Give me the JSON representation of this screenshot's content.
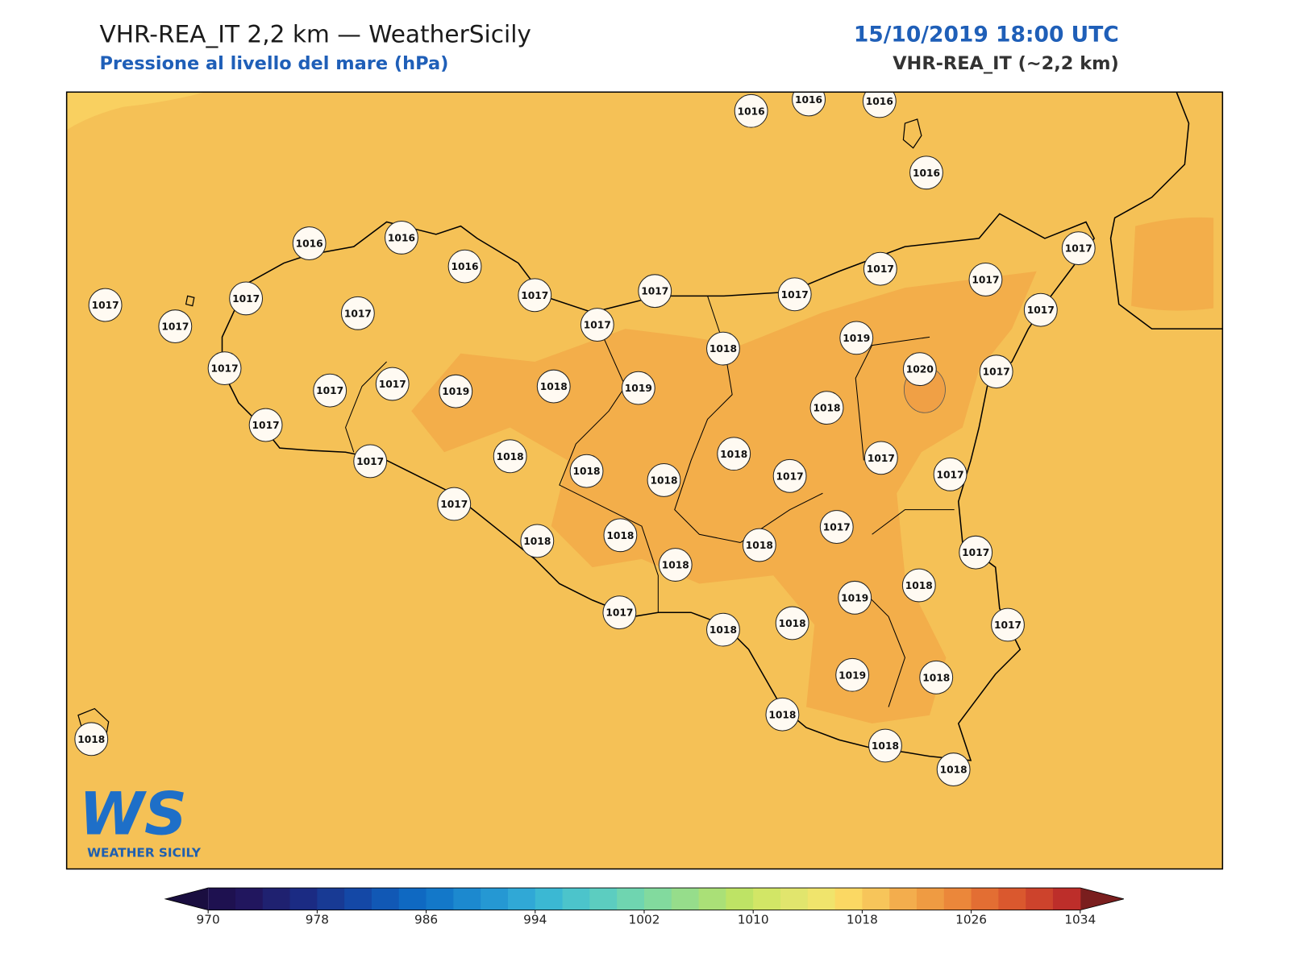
{
  "header": {
    "title": "VHR-REA_IT 2,2 km — WeatherSicily",
    "subtitle": "Pressione al livello del mare (hPa)",
    "datetime": "15/10/2019 18:00 UTC",
    "model": "VHR-REA_IT (~2,2 km)"
  },
  "map": {
    "background_color": "#f5c156",
    "stations": [
      1016,
      1016,
      1016,
      1016,
      1016,
      1016,
      1016,
      1017,
      1017,
      1017,
      1017,
      1017,
      1017,
      1017,
      1017,
      1017,
      1017,
      1017,
      1017,
      1017,
      1017,
      1017,
      1017,
      1017,
      1017,
      1017,
      1017,
      1017,
      1017,
      1017,
      1017,
      1017,
      1017,
      1018,
      1018,
      1018,
      1018,
      1018,
      1018,
      1018,
      1018,
      1018,
      1018,
      1018,
      1018,
      1018,
      1018,
      1018,
      1018,
      1018,
      1018,
      1018,
      1019,
      1019,
      1019,
      1019,
      1019,
      1020
    ]
  },
  "colorbar": {
    "lim": [
      970,
      1034
    ],
    "step": 2,
    "colors": [
      "#1e1150",
      "#21165e",
      "#1f2170",
      "#1b2b83",
      "#183a94",
      "#1448a6",
      "#1158b5",
      "#0f69c2",
      "#1378c9",
      "#1c89cf",
      "#2598d3",
      "#30a8d6",
      "#3bb8d3",
      "#4cc4cb",
      "#5ccdc0",
      "#6fd5b0",
      "#82da9e",
      "#96dd8b",
      "#aae077",
      "#bee365",
      "#d2e666",
      "#e1e56d",
      "#f0e46c",
      "#fbd863",
      "#f7c55a",
      "#f3ad4d",
      "#ef9b42",
      "#eb873a",
      "#e36e33",
      "#da582e",
      "#cd432c",
      "#bd2e2a"
    ],
    "under_color": "#1a0e40",
    "over_color": "#7a1e1e",
    "ticks": [
      970,
      978,
      986,
      994,
      1002,
      1010,
      1018,
      1026,
      1034
    ]
  },
  "logo": {
    "mark": "WS",
    "text": "WEATHER SICILY"
  }
}
